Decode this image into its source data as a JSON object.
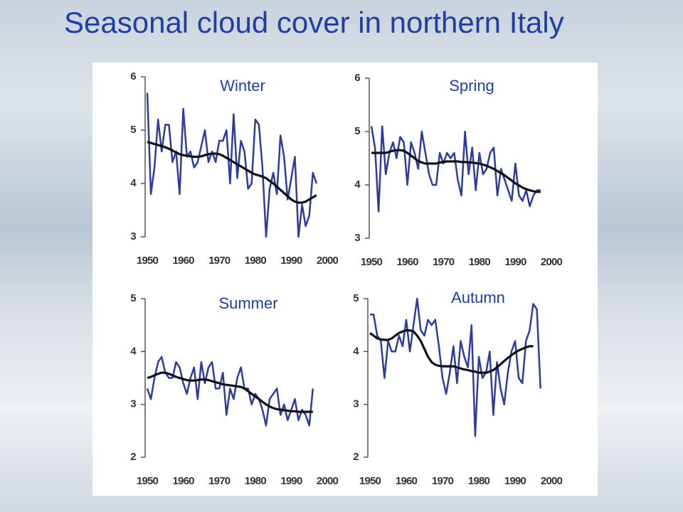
{
  "title": "Seasonal cloud cover in northern Italy",
  "chart_data": [
    {
      "type": "line",
      "title": "Winter",
      "x": [
        1950,
        1951,
        1952,
        1953,
        1954,
        1955,
        1956,
        1957,
        1958,
        1959,
        1960,
        1961,
        1962,
        1963,
        1964,
        1965,
        1966,
        1967,
        1968,
        1969,
        1970,
        1971,
        1972,
        1973,
        1974,
        1975,
        1976,
        1977,
        1978,
        1979,
        1980,
        1981,
        1982,
        1983,
        1984,
        1985,
        1986,
        1987,
        1988,
        1989,
        1990,
        1991,
        1992,
        1993,
        1994,
        1995,
        1996,
        1997
      ],
      "series": [
        {
          "color": "#2b3d9e",
          "values": [
            5.7,
            3.8,
            4.3,
            5.2,
            4.6,
            5.1,
            5.1,
            4.4,
            4.6,
            3.8,
            5.4,
            4.5,
            4.6,
            4.3,
            4.4,
            4.7,
            5.0,
            4.4,
            4.6,
            4.4,
            4.8,
            4.8,
            5.0,
            4.0,
            5.3,
            4.1,
            4.8,
            4.6,
            3.9,
            4.0,
            5.2,
            5.1,
            4.3,
            3.0,
            3.9,
            4.2,
            3.8,
            4.9,
            4.5,
            3.7,
            4.1,
            4.5,
            3.0,
            3.6,
            3.2,
            3.4,
            4.2,
            4.0
          ]
        },
        {
          "color": "#111111",
          "values": [
            4.78,
            4.76,
            4.74,
            4.72,
            4.7,
            4.68,
            4.65,
            4.62,
            4.58,
            4.55,
            4.53,
            4.52,
            4.51,
            4.5,
            4.5,
            4.51,
            4.53,
            4.55,
            4.56,
            4.56,
            4.55,
            4.52,
            4.48,
            4.44,
            4.4,
            4.36,
            4.32,
            4.28,
            4.24,
            4.2,
            4.17,
            4.15,
            4.13,
            4.1,
            4.05,
            4.0,
            3.94,
            3.88,
            3.82,
            3.76,
            3.7,
            3.66,
            3.64,
            3.64,
            3.66,
            3.7,
            3.74,
            3.78
          ]
        }
      ],
      "xlim": [
        1950,
        2000
      ],
      "xticks": [
        1950,
        1960,
        1970,
        1980,
        1990,
        2000
      ],
      "ylim": [
        3,
        6
      ],
      "yticks": [
        3,
        4,
        5,
        6
      ]
    },
    {
      "type": "line",
      "title": "Spring",
      "x": [
        1950,
        1951,
        1952,
        1953,
        1954,
        1955,
        1956,
        1957,
        1958,
        1959,
        1960,
        1961,
        1962,
        1963,
        1964,
        1965,
        1966,
        1967,
        1968,
        1969,
        1970,
        1971,
        1972,
        1973,
        1974,
        1975,
        1976,
        1977,
        1978,
        1979,
        1980,
        1981,
        1982,
        1983,
        1984,
        1985,
        1986,
        1987,
        1988,
        1989,
        1990,
        1991,
        1992,
        1993,
        1994,
        1995,
        1996,
        1997
      ],
      "series": [
        {
          "color": "#2b3d9e",
          "values": [
            5.1,
            4.7,
            3.5,
            5.1,
            4.2,
            4.6,
            4.8,
            4.5,
            4.9,
            4.8,
            4.0,
            4.8,
            4.6,
            4.3,
            5.0,
            4.6,
            4.2,
            4.0,
            4.0,
            4.6,
            4.4,
            4.6,
            4.5,
            4.6,
            4.1,
            3.8,
            5.0,
            4.2,
            4.7,
            3.9,
            4.6,
            4.2,
            4.3,
            4.6,
            4.7,
            3.8,
            4.3,
            4.1,
            3.9,
            3.7,
            4.4,
            3.8,
            3.7,
            3.9,
            3.6,
            3.8,
            3.9,
            3.9
          ]
        },
        {
          "color": "#111111",
          "values": [
            4.6,
            4.6,
            4.6,
            4.6,
            4.6,
            4.62,
            4.64,
            4.65,
            4.65,
            4.64,
            4.6,
            4.55,
            4.5,
            4.45,
            4.42,
            4.4,
            4.4,
            4.4,
            4.4,
            4.42,
            4.43,
            4.44,
            4.44,
            4.44,
            4.44,
            4.43,
            4.43,
            4.42,
            4.42,
            4.41,
            4.4,
            4.38,
            4.36,
            4.33,
            4.3,
            4.26,
            4.22,
            4.18,
            4.13,
            4.08,
            4.03,
            3.99,
            3.95,
            3.92,
            3.9,
            3.88,
            3.87,
            3.87
          ]
        }
      ],
      "xlim": [
        1950,
        2000
      ],
      "xticks": [
        1950,
        1960,
        1970,
        1980,
        1990,
        2000
      ],
      "ylim": [
        3,
        6
      ],
      "yticks": [
        3,
        4,
        5,
        6
      ]
    },
    {
      "type": "line",
      "title": "Summer",
      "x": [
        1950,
        1951,
        1952,
        1953,
        1954,
        1955,
        1956,
        1957,
        1958,
        1959,
        1960,
        1961,
        1962,
        1963,
        1964,
        1965,
        1966,
        1967,
        1968,
        1969,
        1970,
        1971,
        1972,
        1973,
        1974,
        1975,
        1976,
        1977,
        1978,
        1979,
        1980,
        1981,
        1982,
        1983,
        1984,
        1985,
        1986,
        1987,
        1988,
        1989,
        1990,
        1991,
        1992,
        1993,
        1994,
        1995,
        1996
      ],
      "series": [
        {
          "color": "#2b3d9e",
          "values": [
            3.3,
            3.1,
            3.5,
            3.8,
            3.9,
            3.6,
            3.5,
            3.5,
            3.8,
            3.7,
            3.4,
            3.2,
            3.5,
            3.7,
            3.1,
            3.8,
            3.4,
            3.7,
            3.8,
            3.3,
            3.3,
            3.6,
            2.8,
            3.3,
            3.1,
            3.5,
            3.7,
            3.3,
            3.3,
            3.0,
            3.2,
            3.1,
            2.9,
            2.6,
            3.1,
            3.2,
            3.3,
            2.8,
            3.0,
            2.7,
            2.9,
            3.1,
            2.7,
            2.9,
            2.8,
            2.6,
            3.3
          ]
        },
        {
          "color": "#111111",
          "values": [
            3.5,
            3.52,
            3.55,
            3.58,
            3.6,
            3.6,
            3.58,
            3.55,
            3.52,
            3.5,
            3.48,
            3.46,
            3.45,
            3.45,
            3.46,
            3.47,
            3.47,
            3.46,
            3.44,
            3.42,
            3.4,
            3.38,
            3.37,
            3.36,
            3.35,
            3.34,
            3.33,
            3.3,
            3.25,
            3.2,
            3.15,
            3.1,
            3.05,
            3.0,
            2.96,
            2.93,
            2.91,
            2.9,
            2.89,
            2.88,
            2.87,
            2.87,
            2.86,
            2.86,
            2.86,
            2.86,
            2.86
          ]
        }
      ],
      "xlim": [
        1950,
        2000
      ],
      "xticks": [
        1950,
        1960,
        1970,
        1980,
        1990,
        2000
      ],
      "ylim": [
        2,
        5
      ],
      "yticks": [
        2,
        3,
        4,
        5
      ]
    },
    {
      "type": "line",
      "title": "Autumn",
      "x": [
        1950,
        1951,
        1952,
        1953,
        1954,
        1955,
        1956,
        1957,
        1958,
        1959,
        1960,
        1961,
        1962,
        1963,
        1964,
        1965,
        1966,
        1967,
        1968,
        1969,
        1970,
        1971,
        1972,
        1973,
        1974,
        1975,
        1976,
        1977,
        1978,
        1979,
        1980,
        1981,
        1982,
        1983,
        1984,
        1985,
        1986,
        1987,
        1988,
        1989,
        1990,
        1991,
        1992,
        1993,
        1994,
        1995,
        1996,
        1997
      ],
      "series": [
        {
          "color": "#2b3d9e",
          "values": [
            4.7,
            4.7,
            4.3,
            4.2,
            3.5,
            4.2,
            4.0,
            4.0,
            4.3,
            4.1,
            4.6,
            4.0,
            4.5,
            5.0,
            4.4,
            4.3,
            4.6,
            4.5,
            4.6,
            4.1,
            3.5,
            3.2,
            3.6,
            4.1,
            3.4,
            4.2,
            3.9,
            3.7,
            4.5,
            2.4,
            3.9,
            3.5,
            3.6,
            4.0,
            2.8,
            3.8,
            3.3,
            3.0,
            3.6,
            4.0,
            4.2,
            3.5,
            3.4,
            4.2,
            4.4,
            4.9,
            4.8,
            3.3
          ]
        },
        {
          "color": "#111111",
          "values": [
            4.35,
            4.3,
            4.25,
            4.23,
            4.22,
            4.22,
            4.25,
            4.3,
            4.35,
            4.38,
            4.4,
            4.4,
            4.38,
            4.3,
            4.2,
            4.05,
            3.9,
            3.8,
            3.75,
            3.73,
            3.72,
            3.72,
            3.72,
            3.72,
            3.7,
            3.68,
            3.66,
            3.65,
            3.63,
            3.62,
            3.6,
            3.6,
            3.6,
            3.62,
            3.65,
            3.7,
            3.76,
            3.82,
            3.88,
            3.93,
            3.98,
            4.02,
            4.05,
            4.08,
            4.1,
            4.1,
            null,
            null
          ]
        }
      ],
      "xlim": [
        1950,
        2000
      ],
      "xticks": [
        1950,
        1960,
        1970,
        1980,
        1990,
        2000
      ],
      "ylim": [
        2,
        5
      ],
      "yticks": [
        2,
        3,
        4,
        5
      ]
    }
  ]
}
